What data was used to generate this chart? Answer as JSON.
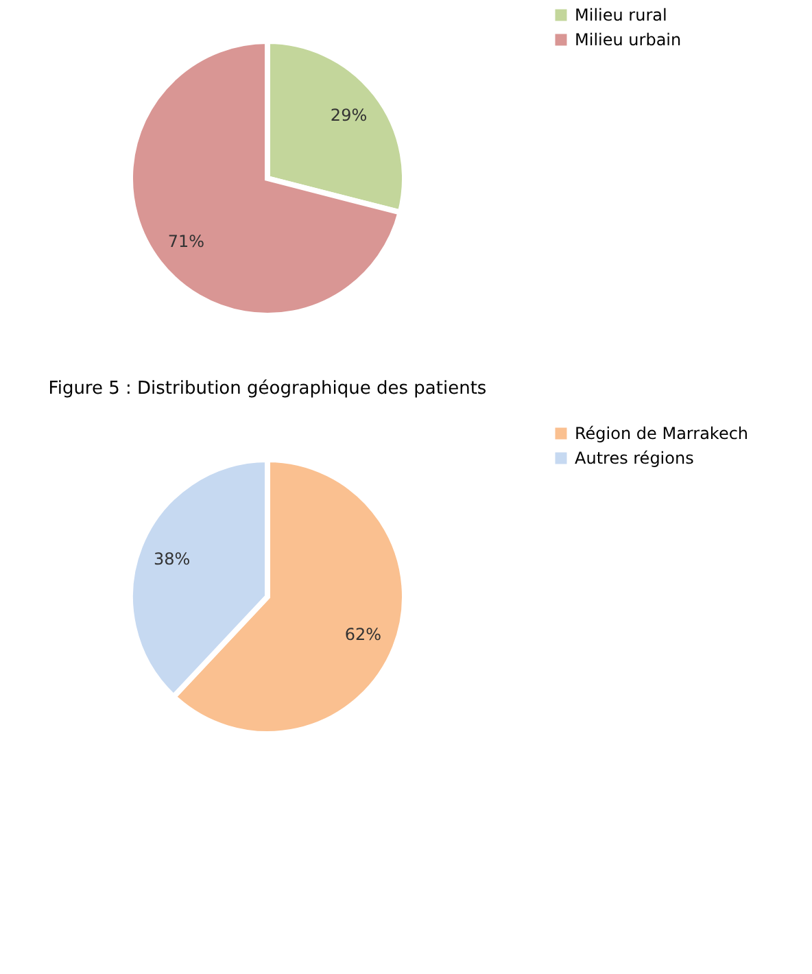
{
  "chart_data": [
    {
      "type": "pie",
      "categories": [
        "Milieu rural",
        "Milieu urbain"
      ],
      "values": [
        29,
        71
      ],
      "colors": [
        "#c3d69b",
        "#d99694"
      ],
      "value_labels": [
        "29%",
        "71%"
      ],
      "legend": "right",
      "annotations": [
        "Figure 5 : Distribution géographique des patients"
      ]
    },
    {
      "type": "pie",
      "categories": [
        "Région de Marrakech",
        "Autres régions"
      ],
      "values": [
        62,
        38
      ],
      "colors": [
        "#fac090",
        "#c6d9f1"
      ],
      "value_labels": [
        "62%",
        "38%"
      ],
      "legend": "right"
    }
  ]
}
